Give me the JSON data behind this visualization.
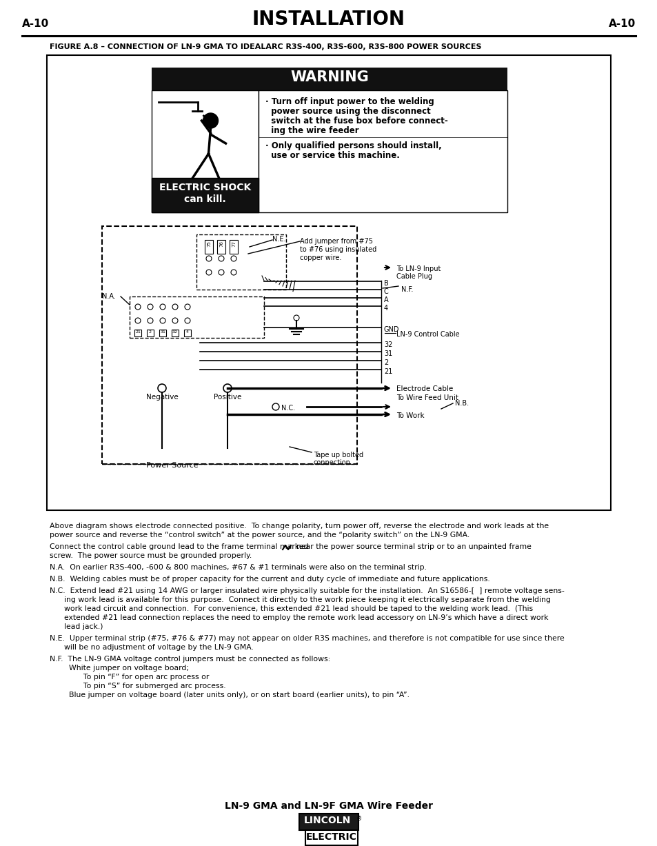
{
  "page_bg": "#ffffff",
  "header_left": "A-10",
  "header_right": "A-10",
  "header_title": "INSTALLATION",
  "figure_caption": "FIGURE A.8 – CONNECTION OF LN-9 GMA TO IDEALARC R3S-400, R3S-600, R3S-800 POWER SOURCES",
  "warning_title": "WARNING",
  "shock_label_line1": "ELECTRIC SHOCK",
  "shock_label_line2": "can kill.",
  "footer_model": "LN-9 GMA and LN-9F GMA Wire Feeder",
  "body_para1": "Above diagram shows electrode connected positive.  To change polarity, turn power off, reverse the electrode and work leads at the power source and reverse the “control switch” at the power source, and the “polarity switch” on the LN-9 GMA.",
  "body_para2a": "Connect the control cable ground lead to the frame terminal marked",
  "body_para2b": "near the power source terminal strip or to an unpainted frame",
  "body_para2c": "screw.  The power source must be grounded properly.",
  "body_na": "N.A.  On earlier R3S-400, -600 & 800 machines, #67 & #1 terminals were also on the terminal strip.",
  "body_nb": "N.B.  Welding cables must be of proper capacity for the current and duty cycle of immediate and future applications.",
  "body_nc": "N.C.  Extend lead #21 using 14 AWG or larger insulated wire physically suitable for the installation.  An S16586-[  ] remote voltage sens-ing work lead is available for this purpose.  Connect it directly to the work piece keeping it electrically separate from the welding work lead circuit and connection.  For convenience, this extended #21 lead should be taped to the welding work lead.  (This extended #21 lead connection replaces the need to employ the remote work lead accessory on LN-9’s which have a direct work lead jack.)",
  "body_ne": "N.E.  Upper terminal strip (#75, #76 & #77) may not appear on older R3S machines, and therefore is not compatible for use since there will be no adjustment of voltage by the LN-9 GMA.",
  "body_nf0": "N.F.  The LN-9 GMA voltage control jumpers must be connected as follows:",
  "body_nf1": "        White jumper on voltage board;",
  "body_nf2": "              To pin “F” for open arc process or",
  "body_nf3": "              To pin “S” for submerged arc process.",
  "body_nf4": "        Blue jumper on voltage board (later units only), or on start board (earlier units), to pin “A”."
}
